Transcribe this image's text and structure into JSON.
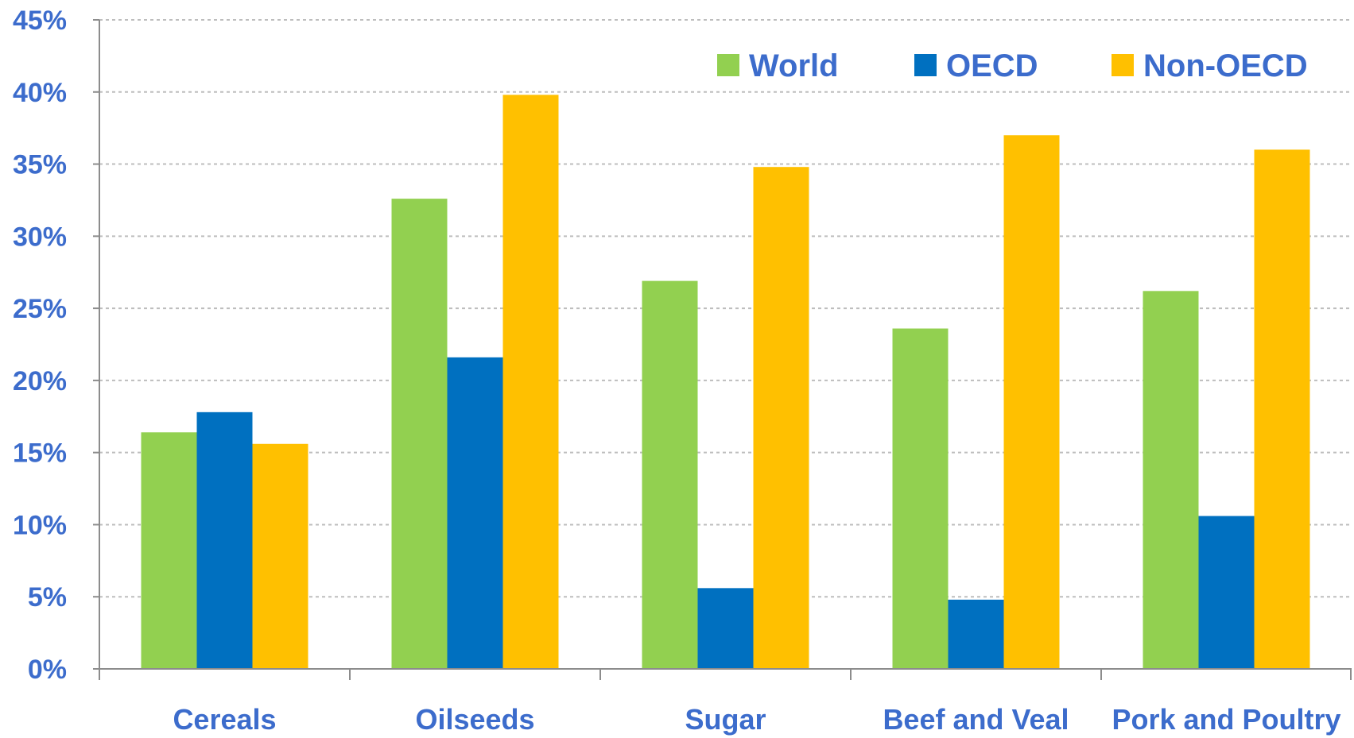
{
  "chart_data": {
    "type": "bar",
    "title": "",
    "xlabel": "",
    "ylabel": "",
    "categories": [
      "Cereals",
      "Oilseeds",
      "Sugar",
      "Beef and Veal",
      "Pork and Poultry"
    ],
    "series": [
      {
        "name": "World",
        "color": "#92d050",
        "values": [
          16.4,
          32.6,
          26.9,
          23.6,
          26.2
        ]
      },
      {
        "name": "OECD",
        "color": "#0070c0",
        "values": [
          17.8,
          21.6,
          5.6,
          4.8,
          10.6
        ]
      },
      {
        "name": "Non-OECD",
        "color": "#ffc000",
        "values": [
          15.6,
          39.8,
          34.8,
          37.0,
          36.0
        ]
      }
    ],
    "ylim": [
      0,
      45
    ],
    "yticks": [
      0,
      5,
      10,
      15,
      20,
      25,
      30,
      35,
      40,
      45
    ],
    "ytick_labels": [
      "0%",
      "5%",
      "10%",
      "15%",
      "20%",
      "25%",
      "30%",
      "35%",
      "40%",
      "45%"
    ],
    "grid": true,
    "legend_position": "top-right",
    "text_color": "#3c6ccc"
  }
}
